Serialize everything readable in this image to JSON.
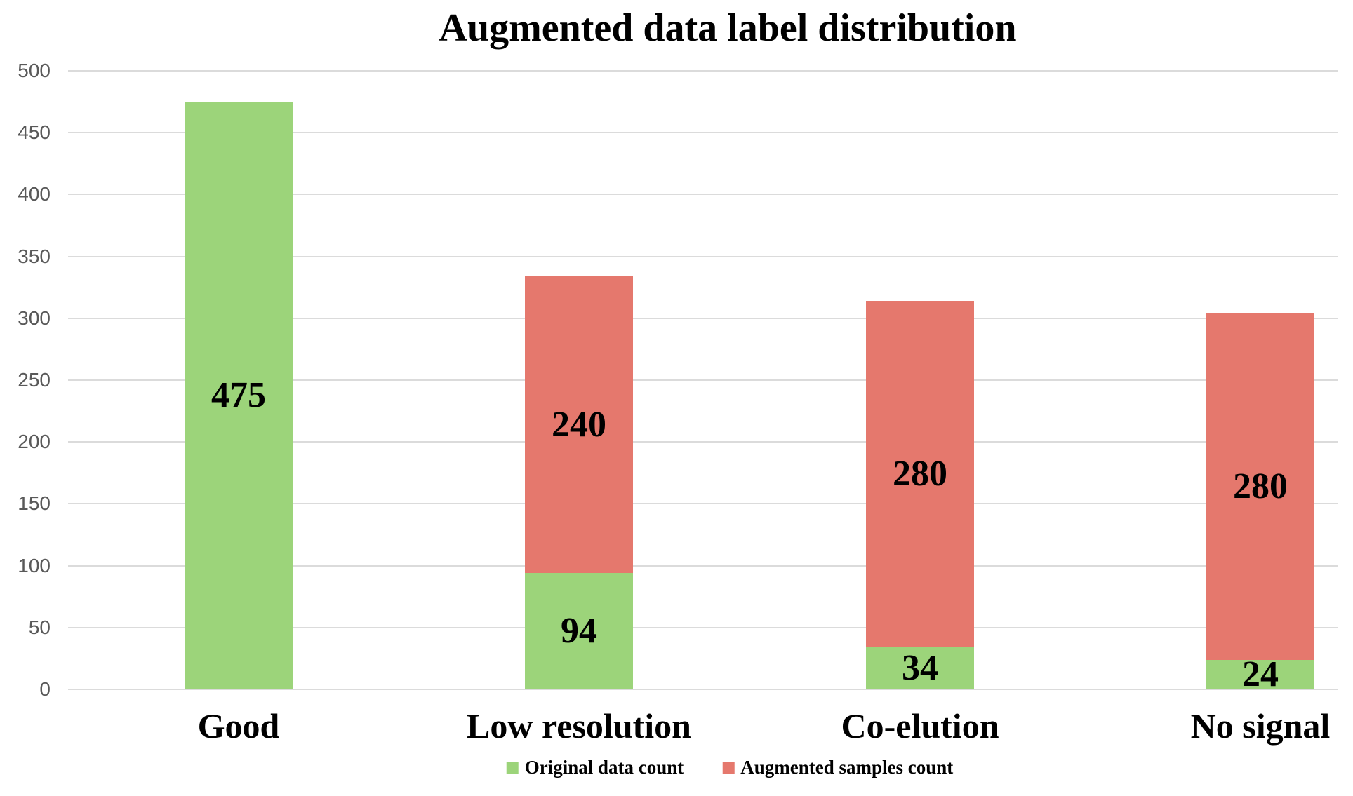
{
  "chart_data": {
    "type": "bar",
    "stacked": true,
    "title": "Augmented data label distribution",
    "categories": [
      "Good",
      "Low resolution",
      "Co-elution",
      "No signal"
    ],
    "series": [
      {
        "name": "Original data count",
        "color": "#9cd47a",
        "values": [
          475,
          94,
          34,
          24
        ]
      },
      {
        "name": "Augmented samples count",
        "color": "#e5786d",
        "values": [
          0,
          240,
          280,
          280
        ]
      }
    ],
    "totals": [
      475,
      334,
      314,
      304
    ],
    "ylabel": "",
    "xlabel": "",
    "ylim": [
      0,
      500
    ],
    "ytick_step": 50,
    "yticks": [
      0,
      50,
      100,
      150,
      200,
      250,
      300,
      350,
      400,
      450,
      500
    ],
    "grid": true,
    "value_labels_shown": true,
    "legend_position": "bottom"
  },
  "colors": {
    "original_series": "#9cd47a",
    "augmented_series": "#e5786d",
    "gridline": "#dbdbdb",
    "axis_tick_text": "#595959",
    "text": "#000000",
    "background": "#ffffff"
  }
}
